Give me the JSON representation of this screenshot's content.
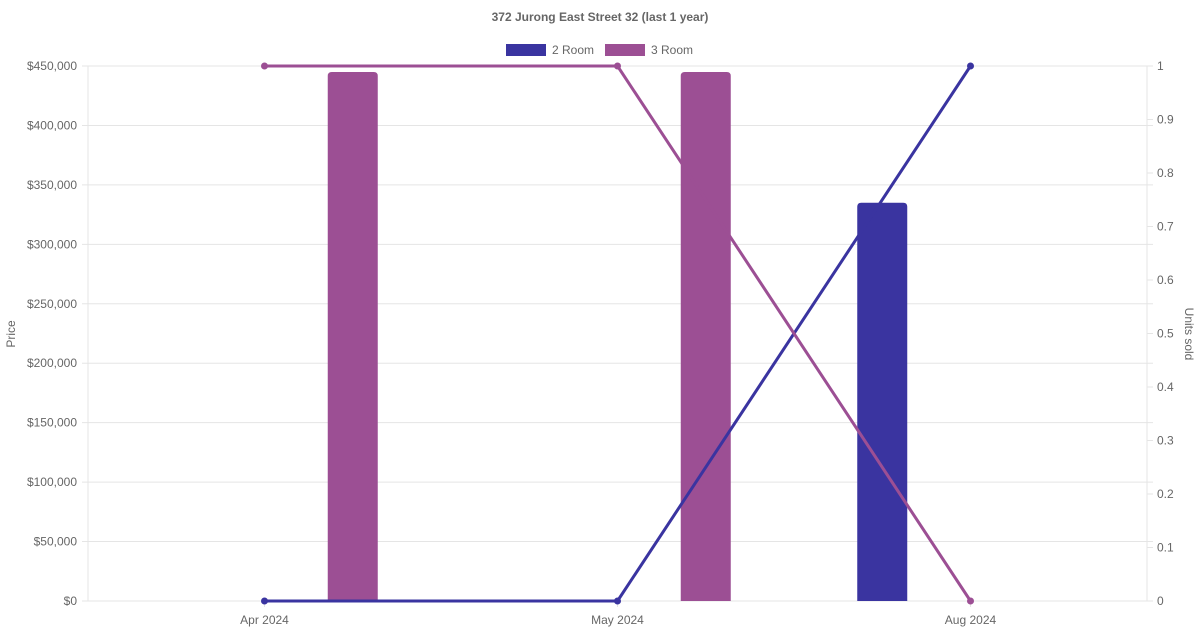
{
  "chart_data": {
    "type": "bar",
    "title": "372 Jurong East Street 32 (last 1 year)",
    "categories": [
      "Apr 2024",
      "May 2024",
      "Aug 2024"
    ],
    "y_left": {
      "label": "Price",
      "range": [
        0,
        450000
      ],
      "ticks": [
        0,
        50000,
        100000,
        150000,
        200000,
        250000,
        300000,
        350000,
        400000,
        450000
      ],
      "tick_labels": [
        "$0",
        "$50,000",
        "$100,000",
        "$150,000",
        "$200,000",
        "$250,000",
        "$300,000",
        "$350,000",
        "$400,000",
        "$450,000"
      ]
    },
    "y_right": {
      "label": "Units sold",
      "range": [
        0,
        1
      ],
      "ticks": [
        0,
        0.1,
        0.2,
        0.3,
        0.4,
        0.5,
        0.6,
        0.7,
        0.8,
        0.9,
        1
      ],
      "tick_labels": [
        "0",
        "0.1",
        "0.2",
        "0.3",
        "0.4",
        "0.5",
        "0.6",
        "0.7",
        "0.8",
        "0.9",
        "1"
      ]
    },
    "grid": true,
    "legend_position": "top",
    "series": [
      {
        "name": "2 Room",
        "color": "#3a34a0",
        "price": [
          null,
          null,
          335000
        ],
        "units_sold": [
          0,
          0,
          1
        ]
      },
      {
        "name": "3 Room",
        "color": "#9c4f94",
        "price": [
          445000,
          445000,
          null
        ],
        "units_sold": [
          1,
          1,
          0
        ]
      }
    ]
  }
}
